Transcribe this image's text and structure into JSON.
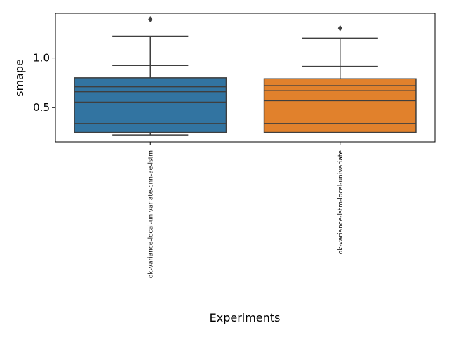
{
  "chart_data": {
    "type": "box",
    "xlabel": "Experiments",
    "ylabel": "smape",
    "ylim": [
      0.155,
      1.45
    ],
    "yticks": [
      "0.5",
      "1.0"
    ],
    "ytick_values": [
      0.5,
      1.0
    ],
    "grid": false,
    "categories": [
      "ok-variance-local-univariate-cnn-ae-lstm",
      "ok-variance-lstm-local-univariate"
    ],
    "boxes": [
      {
        "category": "ok-variance-local-univariate-cnn-ae-lstm",
        "color": "#3274a1",
        "q1": 0.25,
        "q3": 0.8,
        "whisker_low": 0.225,
        "whisker_high": 1.22,
        "lines": [
          0.34,
          0.555,
          0.66,
          0.71,
          0.925
        ],
        "outliers": [
          1.39
        ]
      },
      {
        "category": "ok-variance-lstm-local-univariate",
        "color": "#e1812c",
        "q1": 0.25,
        "q3": 0.79,
        "whisker_low": 0.25,
        "whisker_high": 1.2,
        "lines": [
          0.34,
          0.57,
          0.67,
          0.72,
          0.915
        ],
        "outliers": [
          1.3
        ]
      }
    ]
  }
}
